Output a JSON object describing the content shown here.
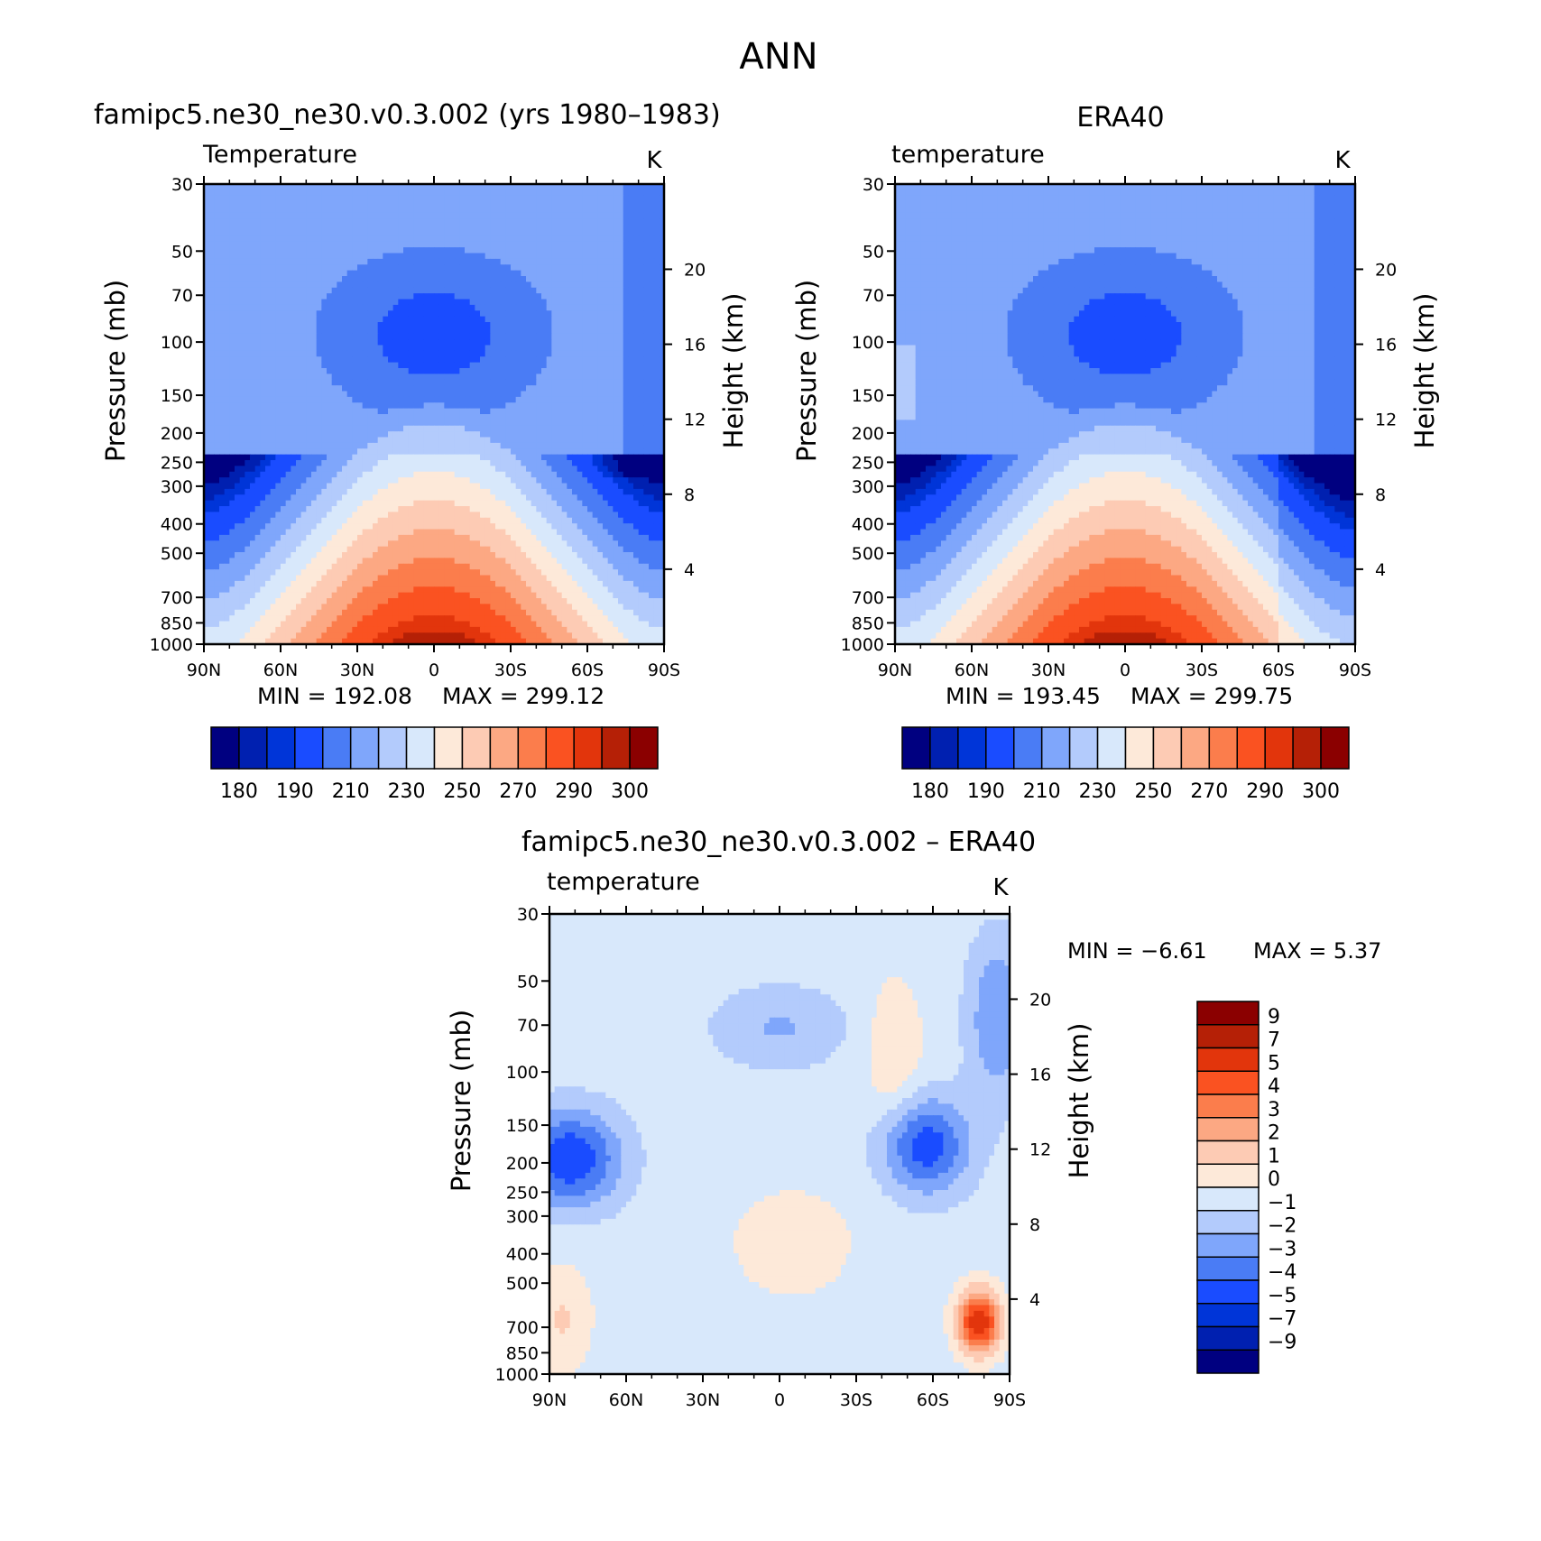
{
  "figure": {
    "title": "ANN",
    "colors": {
      "abs_palette": [
        "#000080",
        "#0020b0",
        "#0035d8",
        "#1a4cff",
        "#4a7cf5",
        "#7fa6fb",
        "#b3cbfc",
        "#d8e8fb",
        "#fde9d9",
        "#fdcbb4",
        "#fca883",
        "#fb7d4c",
        "#fa5221",
        "#e2350c",
        "#b52006",
        "#8b0000"
      ],
      "diff_palette": [
        "#000080",
        "#0020b0",
        "#0035d8",
        "#1a4cff",
        "#4a7cf5",
        "#7fa6fb",
        "#b3cbfc",
        "#d8e8fb",
        "#fde9d9",
        "#fdcbb4",
        "#fca883",
        "#fb7d4c",
        "#fa5221",
        "#e2350c",
        "#b52006",
        "#8b0000"
      ],
      "frame": "#000000"
    }
  },
  "chart_data": [
    {
      "type": "heatmap",
      "title": "famipc5.ne30_ne30.v0.3.002 (yrs 1980–1983)",
      "subtitle": "Temperature",
      "units": "K",
      "xlabel": "",
      "ylabel": "Pressure  (mb)",
      "ylabel_right": "Height  (km)",
      "x_ticklabels": [
        "90N",
        "60N",
        "30N",
        "0",
        "30S",
        "60S",
        "90S"
      ],
      "xlim": [
        90,
        -90
      ],
      "y_ticklabels": [
        "30",
        "50",
        "70",
        "100",
        "150",
        "200",
        "250",
        "300",
        "400",
        "500",
        "700",
        "850",
        "1000"
      ],
      "y_log_scale": true,
      "ylim": [
        1000,
        30
      ],
      "y_right_ticklabels": [
        "20",
        "16",
        "12",
        "8",
        "4"
      ],
      "min_text": "MIN  =  192.08",
      "max_text": "MAX  =  299.12",
      "min": 192.08,
      "max": 299.12,
      "colorbar_orientation": "horizontal",
      "colorbar_labels": [
        "180",
        "190",
        "210",
        "230",
        "250",
        "270",
        "290",
        "300"
      ],
      "colorbar_levels": [
        180,
        185,
        190,
        200,
        210,
        220,
        230,
        240,
        250,
        260,
        270,
        280,
        290,
        295,
        300
      ]
    },
    {
      "type": "heatmap",
      "title": "ERA40",
      "subtitle": "temperature",
      "units": "K",
      "xlabel": "",
      "ylabel": "Pressure  (mb)",
      "ylabel_right": "Height  (km)",
      "x_ticklabels": [
        "90N",
        "60N",
        "30N",
        "0",
        "30S",
        "60S",
        "90S"
      ],
      "xlim": [
        90,
        -90
      ],
      "y_ticklabels": [
        "30",
        "50",
        "70",
        "100",
        "150",
        "200",
        "250",
        "300",
        "400",
        "500",
        "700",
        "850",
        "1000"
      ],
      "y_log_scale": true,
      "ylim": [
        1000,
        30
      ],
      "y_right_ticklabels": [
        "20",
        "16",
        "12",
        "8",
        "4"
      ],
      "min_text": "MIN  =  193.45",
      "max_text": "MAX  =  299.75",
      "min": 193.45,
      "max": 299.75,
      "colorbar_orientation": "horizontal",
      "colorbar_labels": [
        "180",
        "190",
        "210",
        "230",
        "250",
        "270",
        "290",
        "300"
      ],
      "colorbar_levels": [
        180,
        185,
        190,
        200,
        210,
        220,
        230,
        240,
        250,
        260,
        270,
        280,
        290,
        295,
        300
      ]
    },
    {
      "type": "heatmap",
      "title": "famipc5.ne30_ne30.v0.3.002  –  ERA40",
      "subtitle": "temperature",
      "units": "K",
      "xlabel": "",
      "ylabel": "Pressure  (mb)",
      "ylabel_right": "Height  (km)",
      "x_ticklabels": [
        "90N",
        "60N",
        "30N",
        "0",
        "30S",
        "60S",
        "90S"
      ],
      "xlim": [
        90,
        -90
      ],
      "y_ticklabels": [
        "30",
        "50",
        "70",
        "100",
        "150",
        "200",
        "250",
        "300",
        "400",
        "500",
        "700",
        "850",
        "1000"
      ],
      "y_log_scale": true,
      "ylim": [
        1000,
        30
      ],
      "y_right_ticklabels": [
        "20",
        "16",
        "12",
        "8",
        "4"
      ],
      "min_text": "MIN  =    −6.61",
      "max_text": "MAX  =     5.37",
      "min": -6.61,
      "max": 5.37,
      "colorbar_orientation": "vertical",
      "colorbar_labels": [
        "9",
        "7",
        "5",
        "4",
        "3",
        "2",
        "1",
        "0",
        "−1",
        "−2",
        "−3",
        "−4",
        "−5",
        "−7",
        "−9"
      ],
      "colorbar_levels": [
        -9,
        -7,
        -5,
        -4,
        -3,
        -2,
        -1,
        0,
        1,
        2,
        3,
        4,
        5,
        7,
        9
      ]
    }
  ]
}
